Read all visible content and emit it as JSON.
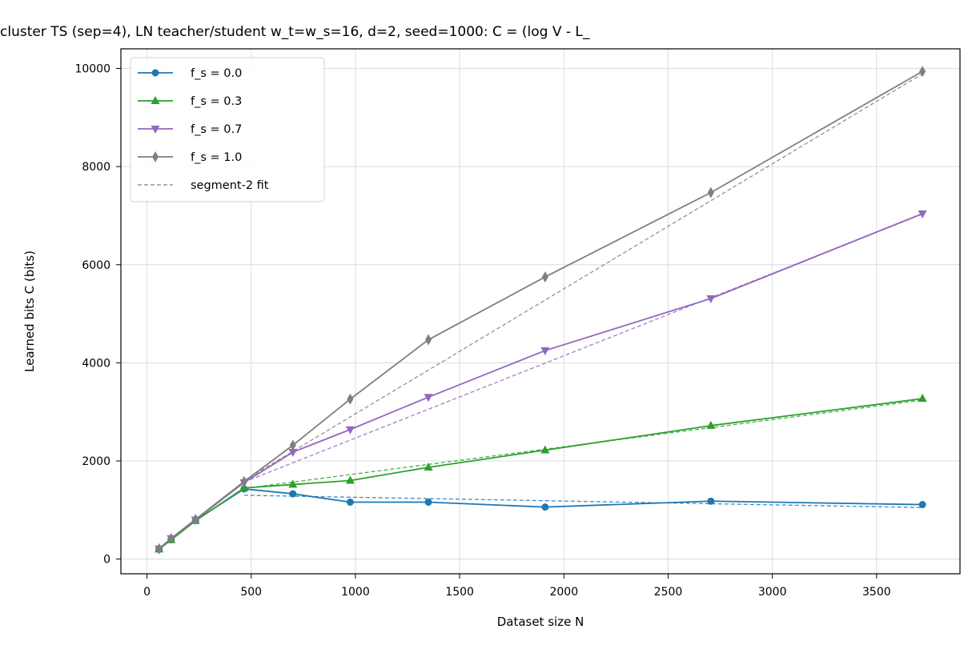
{
  "chart_data": {
    "type": "line",
    "title": "cluster TS (sep=4), LN teacher/student w_t=w_s=16, d=2, seed=1000: C = (log V - L_",
    "xlabel": "Dataset size N",
    "ylabel": "Learned bits C (bits)",
    "xlim": [
      -125,
      3900
    ],
    "ylim": [
      -300,
      10400
    ],
    "xticks": [
      0,
      500,
      1000,
      1500,
      2000,
      2500,
      3000,
      3500
    ],
    "yticks": [
      0,
      2000,
      4000,
      6000,
      8000,
      10000
    ],
    "grid": true,
    "legend_position": "upper left",
    "series": [
      {
        "name": "f_s = 0.0",
        "color": "#1f77b4",
        "marker": "circle",
        "x": [
          58,
          116,
          233,
          466,
          700,
          975,
          1350,
          1910,
          2705,
          3720
        ],
        "y": [
          200,
          400,
          790,
          1430,
          1330,
          1160,
          1160,
          1060,
          1180,
          1110
        ]
      },
      {
        "name": "f_s = 0.3",
        "color": "#2ca02c",
        "marker": "triangle-up",
        "x": [
          58,
          116,
          233,
          466,
          700,
          975,
          1350,
          1910,
          2705,
          3720
        ],
        "y": [
          200,
          390,
          780,
          1450,
          1520,
          1600,
          1870,
          2220,
          2720,
          3270
        ]
      },
      {
        "name": "f_s = 0.7",
        "color": "#9467bd",
        "marker": "triangle-down",
        "x": [
          58,
          116,
          233,
          466,
          700,
          975,
          1350,
          1910,
          2705,
          3720
        ],
        "y": [
          210,
          420,
          800,
          1560,
          2180,
          2640,
          3300,
          4250,
          5310,
          7040
        ]
      },
      {
        "name": "f_s = 1.0",
        "color": "#7f7f7f",
        "marker": "thin-diamond",
        "x": [
          58,
          116,
          233,
          466,
          700,
          975,
          1350,
          1910,
          2705,
          3720
        ],
        "y": [
          210,
          420,
          810,
          1580,
          2320,
          3260,
          4470,
          5750,
          7470,
          9940
        ]
      }
    ],
    "fits": {
      "legend_name": "segment-2 fit",
      "legend_color": "#7f7f7f",
      "lines": [
        {
          "color": "#1f77b4",
          "x": [
            466,
            3720
          ],
          "y": [
            1300,
            1050
          ]
        },
        {
          "color": "#2ca02c",
          "x": [
            466,
            3720
          ],
          "y": [
            1440,
            3240
          ]
        },
        {
          "color": "#9467bd",
          "x": [
            466,
            3720
          ],
          "y": [
            1570,
            7030
          ]
        },
        {
          "color": "#7f7f7f",
          "x": [
            466,
            3720
          ],
          "y": [
            1600,
            9890
          ]
        }
      ]
    }
  }
}
